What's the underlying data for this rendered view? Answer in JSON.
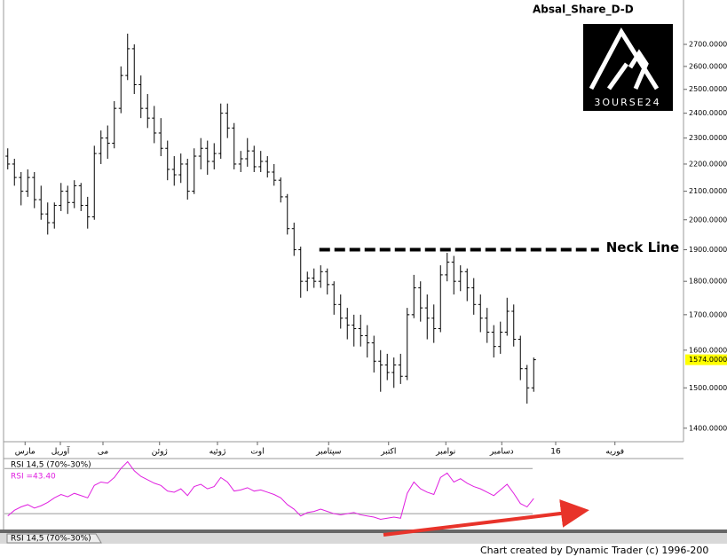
{
  "chart_data": [
    {
      "type": "ohlc",
      "title": "Absal_Share_D-D",
      "ylog": true,
      "ylim": [
        1368,
        2913
      ],
      "yticks": [
        {
          "value": 1400,
          "label": "1400.0000"
        },
        {
          "value": 1500,
          "label": "1500.0000"
        },
        {
          "value": 1600,
          "label": "1600.0000"
        },
        {
          "value": 1700,
          "label": "1700.0000"
        },
        {
          "value": 1800,
          "label": "1800.0000"
        },
        {
          "value": 1900,
          "label": "1900.0000"
        },
        {
          "value": 2000,
          "label": "2000.0000"
        },
        {
          "value": 2100,
          "label": "2100.0000"
        },
        {
          "value": 2200,
          "label": "2200.0000"
        },
        {
          "value": 2300,
          "label": "2300.0000"
        },
        {
          "value": 2400,
          "label": "2400.0000"
        },
        {
          "value": 2500,
          "label": "2500.0000"
        },
        {
          "value": 2600,
          "label": "2600.0000"
        },
        {
          "value": 2700,
          "label": "2700.0000"
        }
      ],
      "xlim": [
        0,
        102
      ],
      "xticks": [
        {
          "value": 3.1,
          "label": "مارس"
        },
        {
          "value": 8.4,
          "label": "آوریل"
        },
        {
          "value": 14.8,
          "label": "می"
        },
        {
          "value": 23.3,
          "label": "ژوئن"
        },
        {
          "value": 32,
          "label": "ژوئیه"
        },
        {
          "value": 38,
          "label": "اوت"
        },
        {
          "value": 48.7,
          "label": "سپتامبر"
        },
        {
          "value": 57.7,
          "label": "اکتبر"
        },
        {
          "value": 66.3,
          "label": "نوامبر"
        },
        {
          "value": 74.7,
          "label": "دسامبر"
        },
        {
          "value": 82.8,
          "label": "16"
        },
        {
          "value": 91.7,
          "label": "فوریه"
        }
      ],
      "color": "#000000",
      "last_price": {
        "value": 1574,
        "label": "1574.0000"
      },
      "neckline": {
        "label": "Neck Line",
        "y": 1900,
        "x": [
          47.3,
          89.3
        ]
      },
      "ohlc": [
        [
          2230,
          2260,
          2180,
          2200
        ],
        [
          2200,
          2220,
          2120,
          2150
        ],
        [
          2150,
          2170,
          2050,
          2100
        ],
        [
          2100,
          2180,
          2080,
          2150
        ],
        [
          2150,
          2170,
          2040,
          2070
        ],
        [
          2070,
          2120,
          2000,
          2020
        ],
        [
          2020,
          2060,
          1950,
          1990
        ],
        [
          1990,
          2060,
          1970,
          2050
        ],
        [
          2050,
          2130,
          2030,
          2100
        ],
        [
          2100,
          2120,
          2020,
          2060
        ],
        [
          2060,
          2140,
          2040,
          2120
        ],
        [
          2120,
          2130,
          2030,
          2050
        ],
        [
          2050,
          2080,
          1970,
          2010
        ],
        [
          2010,
          2270,
          2000,
          2240
        ],
        [
          2240,
          2330,
          2200,
          2300
        ],
        [
          2300,
          2350,
          2220,
          2280
        ],
        [
          2280,
          2450,
          2260,
          2420
        ],
        [
          2420,
          2600,
          2400,
          2560
        ],
        [
          2560,
          2750,
          2540,
          2680
        ],
        [
          2680,
          2700,
          2480,
          2520
        ],
        [
          2520,
          2560,
          2380,
          2420
        ],
        [
          2420,
          2480,
          2340,
          2380
        ],
        [
          2380,
          2430,
          2280,
          2320
        ],
        [
          2320,
          2380,
          2230,
          2260
        ],
        [
          2260,
          2290,
          2140,
          2180
        ],
        [
          2180,
          2230,
          2120,
          2160
        ],
        [
          2160,
          2240,
          2130,
          2200
        ],
        [
          2200,
          2220,
          2070,
          2100
        ],
        [
          2100,
          2260,
          2090,
          2230
        ],
        [
          2230,
          2300,
          2180,
          2260
        ],
        [
          2260,
          2290,
          2160,
          2210
        ],
        [
          2210,
          2280,
          2180,
          2240
        ],
        [
          2240,
          2440,
          2220,
          2400
        ],
        [
          2400,
          2440,
          2300,
          2340
        ],
        [
          2340,
          2360,
          2180,
          2200
        ],
        [
          2200,
          2250,
          2170,
          2220
        ],
        [
          2220,
          2300,
          2190,
          2250
        ],
        [
          2250,
          2270,
          2170,
          2190
        ],
        [
          2190,
          2250,
          2170,
          2210
        ],
        [
          2210,
          2230,
          2150,
          2170
        ],
        [
          2170,
          2200,
          2120,
          2140
        ],
        [
          2140,
          2150,
          2060,
          2080
        ],
        [
          2080,
          2090,
          1950,
          1970
        ],
        [
          1970,
          1990,
          1880,
          1900
        ],
        [
          1900,
          1910,
          1750,
          1800
        ],
        [
          1800,
          1830,
          1770,
          1810
        ],
        [
          1810,
          1840,
          1780,
          1800
        ],
        [
          1800,
          1850,
          1780,
          1830
        ],
        [
          1830,
          1840,
          1760,
          1790
        ],
        [
          1790,
          1800,
          1700,
          1730
        ],
        [
          1730,
          1760,
          1660,
          1690
        ],
        [
          1690,
          1720,
          1630,
          1670
        ],
        [
          1670,
          1700,
          1610,
          1660
        ],
        [
          1660,
          1700,
          1610,
          1640
        ],
        [
          1640,
          1670,
          1580,
          1620
        ],
        [
          1620,
          1640,
          1540,
          1570
        ],
        [
          1570,
          1600,
          1490,
          1560
        ],
        [
          1560,
          1590,
          1520,
          1540
        ],
        [
          1540,
          1580,
          1500,
          1560
        ],
        [
          1560,
          1590,
          1510,
          1530
        ],
        [
          1530,
          1720,
          1520,
          1700
        ],
        [
          1700,
          1820,
          1690,
          1780
        ],
        [
          1780,
          1800,
          1680,
          1720
        ],
        [
          1720,
          1760,
          1630,
          1690
        ],
        [
          1690,
          1730,
          1620,
          1660
        ],
        [
          1660,
          1850,
          1650,
          1820
        ],
        [
          1820,
          1890,
          1800,
          1860
        ],
        [
          1860,
          1880,
          1760,
          1800
        ],
        [
          1800,
          1850,
          1770,
          1830
        ],
        [
          1830,
          1840,
          1740,
          1780
        ],
        [
          1780,
          1810,
          1700,
          1730
        ],
        [
          1730,
          1760,
          1650,
          1690
        ],
        [
          1690,
          1720,
          1620,
          1650
        ],
        [
          1650,
          1670,
          1580,
          1610
        ],
        [
          1610,
          1680,
          1590,
          1650
        ],
        [
          1650,
          1750,
          1640,
          1710
        ],
        [
          1710,
          1730,
          1610,
          1630
        ],
        [
          1630,
          1640,
          1520,
          1550
        ],
        [
          1550,
          1560,
          1460,
          1500
        ],
        [
          1500,
          1580,
          1490,
          1574
        ]
      ]
    },
    {
      "type": "line",
      "title": "RSI 14,5 (70%-30%)",
      "subtitle": "RSI =43.40",
      "color": "#e020e0",
      "xlim": [
        0,
        102
      ],
      "ylim": [
        16,
        78
      ],
      "levels": [
        70,
        30
      ],
      "values": [
        28,
        33,
        36,
        38,
        35,
        37,
        40,
        44,
        47,
        45,
        48,
        46,
        44,
        55,
        58,
        57,
        62,
        70,
        76,
        68,
        63,
        60,
        57,
        55,
        50,
        49,
        52,
        46,
        54,
        56,
        52,
        54,
        62,
        58,
        50,
        51,
        53,
        50,
        51,
        49,
        47,
        44,
        38,
        34,
        28,
        31,
        32,
        34,
        32,
        30,
        29,
        30,
        31,
        29,
        28,
        27,
        25,
        26,
        27,
        26,
        48,
        58,
        52,
        49,
        47,
        62,
        66,
        58,
        61,
        57,
        54,
        52,
        49,
        46,
        51,
        56,
        48,
        39,
        36,
        43.4
      ]
    }
  ],
  "logo": "3OURSE24",
  "footer": "Chart created by Dynamic Trader  (c) 1996-200"
}
